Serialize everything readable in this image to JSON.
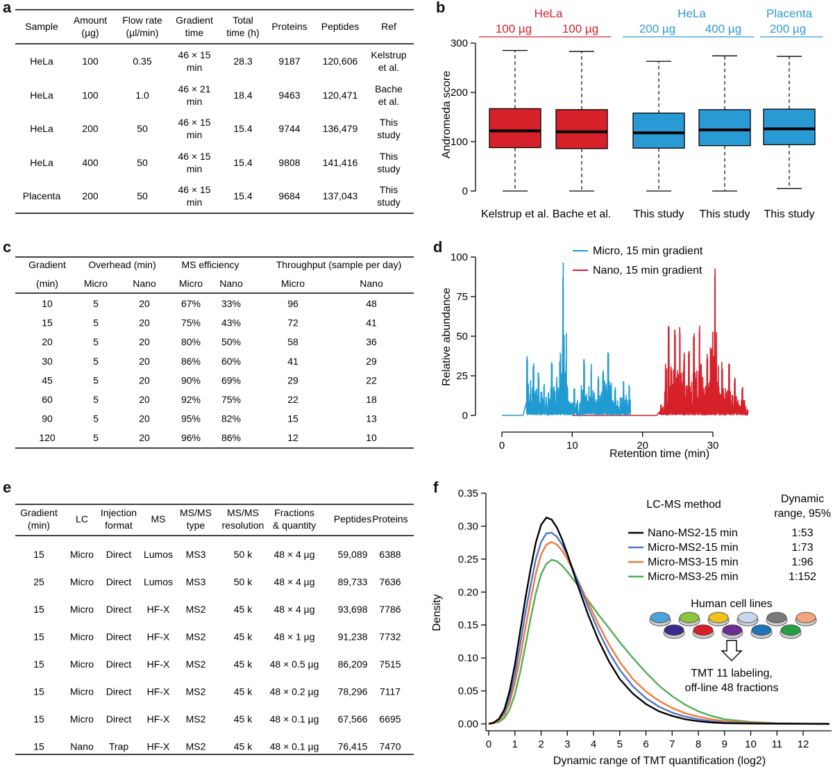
{
  "panels": {
    "a": "a",
    "b": "b",
    "c": "c",
    "d": "d",
    "e": "e",
    "f": "f"
  },
  "table_a": {
    "headers": [
      [
        "Sample"
      ],
      [
        "Amount",
        "(µg)"
      ],
      [
        "Flow rate",
        "(µl/min)"
      ],
      [
        "Gradient",
        "time"
      ],
      [
        "Total",
        "time (h)"
      ],
      [
        "Proteins"
      ],
      [
        "Peptides"
      ],
      [
        "Ref"
      ]
    ],
    "rows": [
      [
        [
          "HeLa"
        ],
        [
          "100"
        ],
        [
          "0.35"
        ],
        [
          "46 × 15",
          "min"
        ],
        [
          "28.3"
        ],
        [
          "9187"
        ],
        [
          "120,606"
        ],
        [
          "Kelstrup",
          "et al."
        ]
      ],
      [
        [
          "HeLa"
        ],
        [
          "100"
        ],
        [
          "1.0"
        ],
        [
          "46 × 21",
          "min"
        ],
        [
          "18.4"
        ],
        [
          "9463"
        ],
        [
          "120,471"
        ],
        [
          "Bache",
          "et al."
        ]
      ],
      [
        [
          "HeLa"
        ],
        [
          "200"
        ],
        [
          "50"
        ],
        [
          "46 × 15",
          "min"
        ],
        [
          "15.4"
        ],
        [
          "9744"
        ],
        [
          "136,479"
        ],
        [
          "This",
          "study"
        ]
      ],
      [
        [
          "HeLa"
        ],
        [
          "400"
        ],
        [
          "50"
        ],
        [
          "46 × 15",
          "min"
        ],
        [
          "15.4"
        ],
        [
          "9808"
        ],
        [
          "141,416"
        ],
        [
          "This",
          "study"
        ]
      ],
      [
        [
          "Placenta"
        ],
        [
          "200"
        ],
        [
          "50"
        ],
        [
          "46 × 15",
          "min"
        ],
        [
          "15.4"
        ],
        [
          "9684"
        ],
        [
          "137,043"
        ],
        [
          "This",
          "study"
        ]
      ]
    ]
  },
  "table_c": {
    "header_top": [
      "Gradient",
      "Overhead (min)",
      "MS efficiency",
      "Throughput (sample per day)"
    ],
    "header_sub": [
      "(min)",
      "Micro",
      "Nano",
      "Micro",
      "Nano",
      "Micro",
      "Nano"
    ],
    "rows": [
      [
        "10",
        "5",
        "20",
        "67%",
        "33%",
        "96",
        "48"
      ],
      [
        "15",
        "5",
        "20",
        "75%",
        "43%",
        "72",
        "41"
      ],
      [
        "20",
        "5",
        "20",
        "80%",
        "50%",
        "58",
        "36"
      ],
      [
        "30",
        "5",
        "20",
        "86%",
        "60%",
        "41",
        "29"
      ],
      [
        "45",
        "5",
        "20",
        "90%",
        "69%",
        "29",
        "22"
      ],
      [
        "60",
        "5",
        "20",
        "92%",
        "75%",
        "22",
        "18"
      ],
      [
        "90",
        "5",
        "20",
        "95%",
        "82%",
        "15",
        "13"
      ],
      [
        "120",
        "5",
        "20",
        "96%",
        "86%",
        "12",
        "10"
      ]
    ]
  },
  "table_e": {
    "headers": [
      [
        "Gradient",
        "(min)"
      ],
      [
        "LC"
      ],
      [
        "Injection",
        "format"
      ],
      [
        "MS"
      ],
      [
        "MS/MS",
        "type"
      ],
      [
        "MS/MS",
        "resolution"
      ],
      [
        "Fractions",
        "& quantity"
      ],
      [
        "Peptides"
      ],
      [
        "Proteins"
      ]
    ],
    "rows": [
      [
        [
          "15"
        ],
        [
          "Micro"
        ],
        [
          "Direct"
        ],
        [
          "Lumos"
        ],
        [
          "MS3"
        ],
        [
          "50 k"
        ],
        [
          "48 × 4 µg"
        ],
        [
          "59,089"
        ],
        [
          "6388"
        ]
      ],
      [
        [
          "25"
        ],
        [
          "Micro"
        ],
        [
          "Direct"
        ],
        [
          "Lumos"
        ],
        [
          "MS3"
        ],
        [
          "50 k"
        ],
        [
          "48 × 4 µg"
        ],
        [
          "89,733"
        ],
        [
          "7636"
        ]
      ],
      [
        [
          "15"
        ],
        [
          "Micro"
        ],
        [
          "Direct"
        ],
        [
          "HF-X"
        ],
        [
          "MS2"
        ],
        [
          "45 k"
        ],
        [
          "48 × 4 µg"
        ],
        [
          "93,698"
        ],
        [
          "7786"
        ]
      ],
      [
        [
          "15"
        ],
        [
          "Micro"
        ],
        [
          "Direct"
        ],
        [
          "HF-X"
        ],
        [
          "MS2"
        ],
        [
          "45 k"
        ],
        [
          "48 × 1 µg"
        ],
        [
          "91,238"
        ],
        [
          "7732"
        ]
      ],
      [
        [
          "15"
        ],
        [
          "Micro"
        ],
        [
          "Direct"
        ],
        [
          "HF-X"
        ],
        [
          "MS2"
        ],
        [
          "45 k"
        ],
        [
          "48 × 0.5 µg"
        ],
        [
          "86,209"
        ],
        [
          "7515"
        ]
      ],
      [
        [
          "15"
        ],
        [
          "Micro"
        ],
        [
          "Direct"
        ],
        [
          "HF-X"
        ],
        [
          "MS2"
        ],
        [
          "45 k"
        ],
        [
          "48 × 0.2 µg"
        ],
        [
          "78,296"
        ],
        [
          "7117"
        ]
      ],
      [
        [
          "15"
        ],
        [
          "Micro"
        ],
        [
          "Direct"
        ],
        [
          "HF-X"
        ],
        [
          "MS2"
        ],
        [
          "45 k"
        ],
        [
          "48 × 0.1 µg"
        ],
        [
          "67,566"
        ],
        [
          "6695"
        ]
      ],
      [
        [
          "15"
        ],
        [
          "Nano"
        ],
        [
          "Trap"
        ],
        [
          "HF-X"
        ],
        [
          "MS2"
        ],
        [
          "45 k"
        ],
        [
          "48 × 0.1 µg"
        ],
        [
          "76,415"
        ],
        [
          "7470"
        ]
      ]
    ]
  },
  "chart_data": [
    {
      "panel": "b",
      "type": "box",
      "ylabel": "Andromeda score",
      "ylim": [
        0,
        330
      ],
      "yticks": [
        0,
        100,
        200,
        300
      ],
      "categories": [
        "Kelstrup et al.",
        "Bache et al.",
        "This study",
        "This study",
        "This study"
      ],
      "group_labels": [
        {
          "text": "HeLa",
          "color": "#d6202a",
          "span": [
            0,
            1
          ]
        },
        {
          "text": "HeLa",
          "color": "#2a9ad4",
          "span": [
            2,
            3
          ]
        },
        {
          "text": "Placenta",
          "color": "#2a9ad4",
          "span": [
            4,
            4
          ]
        }
      ],
      "amount_labels": [
        "100 µg",
        "100 µg",
        "200 µg",
        "400 µg",
        "200 µg"
      ],
      "boxes": [
        {
          "min": 0,
          "q1": 88,
          "median": 122,
          "q3": 167,
          "max": 285,
          "color": "#d6202a"
        },
        {
          "min": 0,
          "q1": 86,
          "median": 120,
          "q3": 165,
          "max": 283,
          "color": "#d6202a"
        },
        {
          "min": 0,
          "q1": 87,
          "median": 118,
          "q3": 158,
          "max": 263,
          "color": "#2a9ad4"
        },
        {
          "min": 0,
          "q1": 92,
          "median": 124,
          "q3": 165,
          "max": 274,
          "color": "#2a9ad4"
        },
        {
          "min": 5,
          "q1": 94,
          "median": 126,
          "q3": 166,
          "max": 273,
          "color": "#2a9ad4"
        }
      ]
    },
    {
      "panel": "d",
      "type": "line",
      "xlabel": "Retention time (min)",
      "ylabel": "Relative abundance",
      "xlim": [
        -1,
        36
      ],
      "ylim": [
        -3,
        104
      ],
      "xticks": [
        0,
        10,
        20,
        30
      ],
      "yticks": [
        0,
        25,
        50,
        75,
        100
      ],
      "series": [
        {
          "name": "Micro, 15 min gradient",
          "color": "#1f9bd2",
          "peaks": [
            [
              3.6,
              41
            ],
            [
              4.5,
              33
            ],
            [
              5.2,
              28
            ],
            [
              6.0,
              22
            ],
            [
              7.1,
              34
            ],
            [
              7.8,
              25
            ],
            [
              8.3,
              36
            ],
            [
              8.7,
              100
            ],
            [
              9.3,
              20
            ],
            [
              10.3,
              18
            ],
            [
              11.7,
              37
            ],
            [
              12.7,
              34
            ],
            [
              13.7,
              26
            ],
            [
              14.4,
              30
            ],
            [
              15.1,
              42
            ],
            [
              16.1,
              18
            ],
            [
              17.3,
              24
            ],
            [
              18.1,
              21
            ]
          ]
        },
        {
          "name": "Nano, 15 min gradient",
          "color": "#d6202a",
          "peaks": [
            [
              22.6,
              7
            ],
            [
              23.2,
              16
            ],
            [
              23.7,
              62
            ],
            [
              24.6,
              55
            ],
            [
              25.3,
              60
            ],
            [
              25.9,
              40
            ],
            [
              26.6,
              42
            ],
            [
              27.3,
              52
            ],
            [
              28.1,
              60
            ],
            [
              29.2,
              41
            ],
            [
              29.7,
              43
            ],
            [
              30.3,
              100
            ],
            [
              31.3,
              34
            ],
            [
              32.3,
              33
            ],
            [
              33.1,
              24
            ],
            [
              34.2,
              18
            ]
          ]
        }
      ]
    },
    {
      "panel": "f",
      "type": "line",
      "xlabel": "Dynamic range of TMT quantification (log2)",
      "ylabel": "Density",
      "xlim": [
        0,
        13
      ],
      "ylim": [
        0,
        0.35
      ],
      "xticks": [
        0,
        1,
        2,
        3,
        4,
        5,
        6,
        7,
        8,
        9,
        10,
        11,
        12
      ],
      "yticks": [
        0.0,
        0.05,
        0.1,
        0.15,
        0.2,
        0.25,
        0.3,
        0.35
      ],
      "legend_title": "LC-MS method",
      "range_title": "Dynamic range, 95%",
      "series": [
        {
          "name": "Nano-MS2-15 min",
          "range": "1:53",
          "color": "#000000",
          "x": [
            0,
            0.2,
            0.4,
            0.6,
            0.8,
            1.0,
            1.2,
            1.4,
            1.6,
            1.8,
            2.0,
            2.2,
            2.4,
            2.6,
            2.8,
            3.0,
            3.4,
            3.8,
            4.2,
            4.6,
            5.0,
            5.5,
            6.0,
            6.5,
            7.0,
            7.5,
            8.0,
            8.5,
            9.0,
            10,
            11,
            12,
            13
          ],
          "y": [
            0,
            0.002,
            0.008,
            0.022,
            0.05,
            0.09,
            0.14,
            0.19,
            0.235,
            0.275,
            0.302,
            0.313,
            0.31,
            0.298,
            0.28,
            0.258,
            0.21,
            0.165,
            0.126,
            0.094,
            0.068,
            0.046,
            0.03,
            0.019,
            0.012,
            0.007,
            0.004,
            0.002,
            0.001,
            0.0005,
            0.0002,
            0.0001,
            0
          ]
        },
        {
          "name": "Micro-MS2-15 min",
          "range": "1:73",
          "color": "#4f74c4",
          "x": [
            0,
            0.2,
            0.4,
            0.6,
            0.8,
            1.0,
            1.2,
            1.4,
            1.6,
            1.8,
            2.0,
            2.2,
            2.4,
            2.6,
            2.8,
            3.0,
            3.4,
            3.8,
            4.2,
            4.6,
            5.0,
            5.5,
            6.0,
            6.5,
            7.0,
            7.5,
            8.0,
            8.5,
            9.0,
            10,
            11,
            12,
            13
          ],
          "y": [
            0,
            0.002,
            0.007,
            0.018,
            0.04,
            0.075,
            0.12,
            0.168,
            0.21,
            0.25,
            0.276,
            0.289,
            0.29,
            0.284,
            0.272,
            0.256,
            0.217,
            0.177,
            0.14,
            0.108,
            0.082,
            0.057,
            0.039,
            0.026,
            0.017,
            0.011,
            0.007,
            0.004,
            0.002,
            0.001,
            0.0004,
            0.0002,
            0
          ]
        },
        {
          "name": "Micro-MS3-15 min",
          "range": "1:96",
          "color": "#ef7a3a",
          "x": [
            0,
            0.2,
            0.4,
            0.6,
            0.8,
            1.0,
            1.2,
            1.4,
            1.6,
            1.8,
            2.0,
            2.2,
            2.4,
            2.6,
            2.8,
            3.0,
            3.4,
            3.8,
            4.2,
            4.6,
            5.0,
            5.5,
            6.0,
            6.5,
            7.0,
            7.5,
            8.0,
            8.5,
            9.0,
            10,
            11,
            12,
            13
          ],
          "y": [
            0,
            0.001,
            0.005,
            0.014,
            0.032,
            0.062,
            0.1,
            0.145,
            0.188,
            0.228,
            0.257,
            0.272,
            0.276,
            0.272,
            0.263,
            0.25,
            0.218,
            0.184,
            0.15,
            0.12,
            0.094,
            0.068,
            0.049,
            0.035,
            0.024,
            0.016,
            0.011,
            0.007,
            0.004,
            0.002,
            0.0008,
            0.0003,
            0
          ]
        },
        {
          "name": "Micro-MS3-25 min",
          "range": "1:152",
          "color": "#4fae55",
          "x": [
            0,
            0.2,
            0.4,
            0.6,
            0.8,
            1.0,
            1.2,
            1.4,
            1.6,
            1.8,
            2.0,
            2.2,
            2.4,
            2.6,
            2.8,
            3.0,
            3.4,
            3.8,
            4.2,
            4.6,
            5.0,
            5.5,
            6.0,
            6.5,
            7.0,
            7.5,
            8.0,
            8.5,
            9.0,
            10,
            11,
            12,
            13
          ],
          "y": [
            0,
            0.001,
            0.003,
            0.009,
            0.022,
            0.045,
            0.078,
            0.118,
            0.16,
            0.198,
            0.227,
            0.243,
            0.249,
            0.247,
            0.24,
            0.231,
            0.21,
            0.187,
            0.165,
            0.145,
            0.124,
            0.1,
            0.078,
            0.058,
            0.042,
            0.029,
            0.019,
            0.012,
            0.007,
            0.003,
            0.0012,
            0.0005,
            0
          ]
        }
      ],
      "annotation": {
        "cells_title": "Human cell lines",
        "labeling_text": [
          "TMT 11 labeling,",
          "off-line 48 fractions"
        ],
        "dish_colors_top": [
          "#4da3d9",
          "#8cc63f",
          "#f2c21b",
          "#c6d7ee",
          "#7a7a7a",
          "#f2a57d"
        ],
        "dish_colors_bottom": [
          "#3b2a8c",
          "#d6202a",
          "#6a2f91",
          "#1f74b5",
          "#27a043"
        ]
      }
    }
  ]
}
